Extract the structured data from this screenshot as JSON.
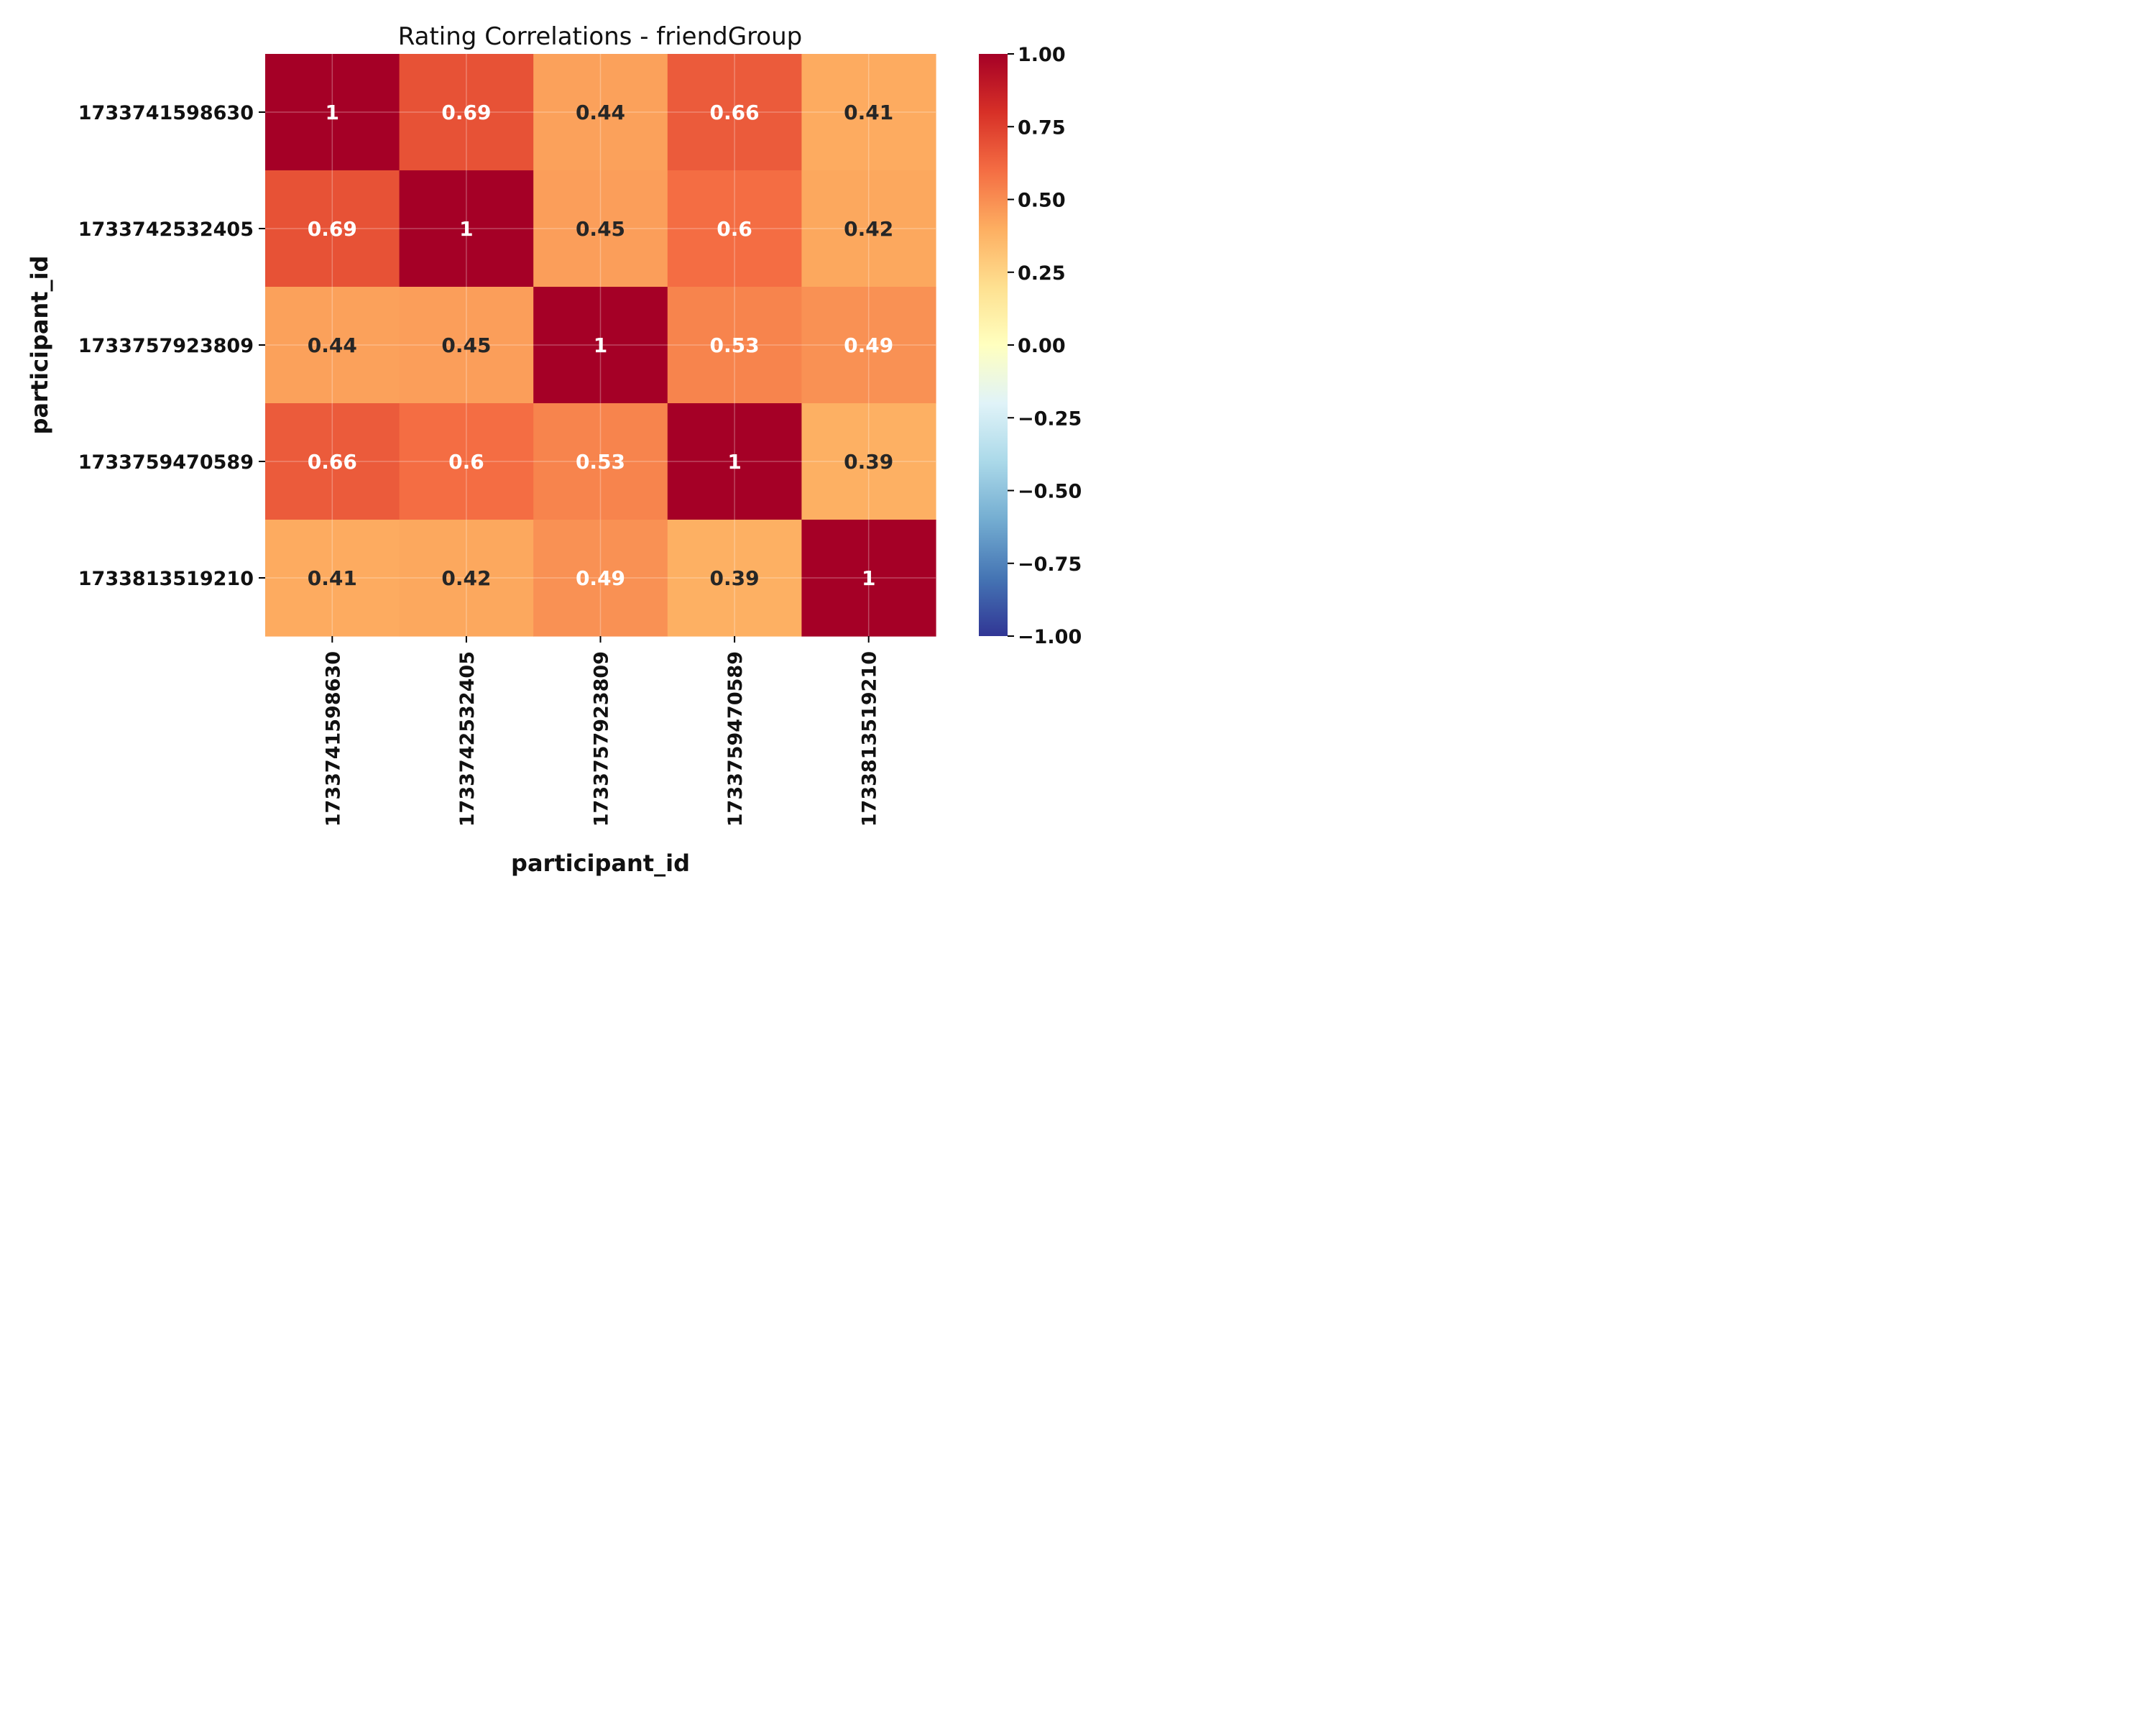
{
  "chart_data": {
    "type": "heatmap",
    "title": "Rating Correlations - friendGroup",
    "xlabel": "participant_id",
    "ylabel": "participant_id",
    "x_categories": [
      "1733741598630",
      "1733742532405",
      "1733757923809",
      "1733759470589",
      "1733813519210"
    ],
    "y_categories": [
      "1733741598630",
      "1733742532405",
      "1733757923809",
      "1733759470589",
      "1733813519210"
    ],
    "values": [
      [
        1,
        0.69,
        0.44,
        0.66,
        0.41
      ],
      [
        0.69,
        1,
        0.45,
        0.6,
        0.42
      ],
      [
        0.44,
        0.45,
        1,
        0.53,
        0.49
      ],
      [
        0.66,
        0.6,
        0.53,
        1,
        0.39
      ],
      [
        0.41,
        0.42,
        0.49,
        0.39,
        1
      ]
    ],
    "value_labels": [
      [
        "1",
        "0.69",
        "0.44",
        "0.66",
        "0.41"
      ],
      [
        "0.69",
        "1",
        "0.45",
        "0.6",
        "0.42"
      ],
      [
        "0.44",
        "0.45",
        "1",
        "0.53",
        "0.49"
      ],
      [
        "0.66",
        "0.6",
        "0.53",
        "1",
        "0.39"
      ],
      [
        "0.41",
        "0.42",
        "0.49",
        "0.39",
        "1"
      ]
    ],
    "colorbar": {
      "min": -1,
      "max": 1,
      "ticks": [
        1,
        0.75,
        0.5,
        0.25,
        0,
        -0.25,
        -0.5,
        -0.75,
        -1
      ],
      "tick_labels": [
        "1.00",
        "0.75",
        "0.50",
        "0.25",
        "0.00",
        "−0.25",
        "−0.50",
        "−0.75",
        "−1.00"
      ]
    },
    "colormap": "RdYlBu_r",
    "grid": true
  }
}
